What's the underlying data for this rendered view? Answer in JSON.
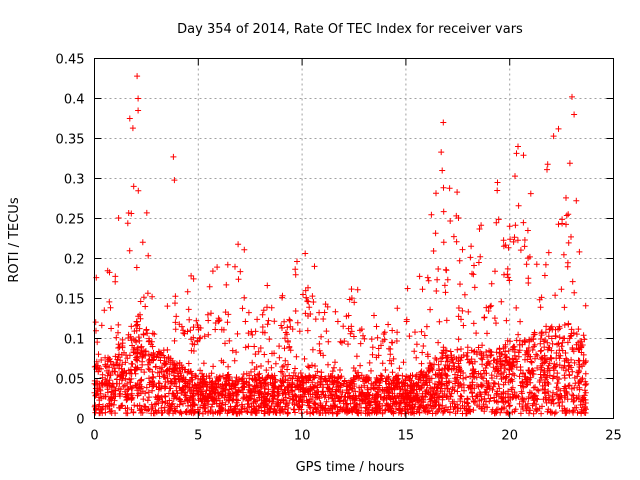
{
  "chart_data": {
    "type": "scatter",
    "title": "Day 354 of 2014, Rate Of TEC Index for receiver vars",
    "xlabel": "GPS time / hours",
    "ylabel": "ROTI / TECUs",
    "xlim": [
      0,
      25
    ],
    "ylim": [
      0,
      0.45
    ],
    "xticks": [
      "0",
      "5",
      "10",
      "15",
      "20",
      "25"
    ],
    "yticks": [
      "0",
      "0.05",
      "0.1",
      "0.15",
      "0.2",
      "0.25",
      "0.3",
      "0.35",
      "0.4",
      "0.45"
    ],
    "grid": true,
    "marker": "+",
    "color": "#ff0000",
    "time_range_hours": [
      0,
      23.7
    ],
    "activity_profile": [
      {
        "t": 0.0,
        "base": 0.04,
        "peak": 0.18
      },
      {
        "t": 1.0,
        "base": 0.05,
        "peak": 0.22
      },
      {
        "t": 2.0,
        "base": 0.08,
        "peak": 0.43
      },
      {
        "t": 3.0,
        "base": 0.05,
        "peak": 0.2
      },
      {
        "t": 4.0,
        "base": 0.04,
        "peak": 0.2
      },
      {
        "t": 5.0,
        "base": 0.03,
        "peak": 0.17
      },
      {
        "t": 7.0,
        "base": 0.03,
        "peak": 0.22
      },
      {
        "t": 9.0,
        "base": 0.03,
        "peak": 0.16
      },
      {
        "t": 10.0,
        "base": 0.03,
        "peak": 0.21
      },
      {
        "t": 12.0,
        "base": 0.03,
        "peak": 0.18
      },
      {
        "t": 14.0,
        "base": 0.03,
        "peak": 0.15
      },
      {
        "t": 15.5,
        "base": 0.03,
        "peak": 0.18
      },
      {
        "t": 16.7,
        "base": 0.05,
        "peak": 0.37
      },
      {
        "t": 18.0,
        "base": 0.05,
        "peak": 0.3
      },
      {
        "t": 19.0,
        "base": 0.05,
        "peak": 0.28
      },
      {
        "t": 20.5,
        "base": 0.06,
        "peak": 0.34
      },
      {
        "t": 22.0,
        "base": 0.07,
        "peak": 0.36
      },
      {
        "t": 23.0,
        "base": 0.07,
        "peak": 0.4
      },
      {
        "t": 23.7,
        "base": 0.05,
        "peak": 0.22
      }
    ],
    "highlighted_points": [
      {
        "x": 2.05,
        "y": 0.428
      },
      {
        "x": 2.1,
        "y": 0.4
      },
      {
        "x": 2.1,
        "y": 0.385
      },
      {
        "x": 1.7,
        "y": 0.375
      },
      {
        "x": 1.85,
        "y": 0.363
      },
      {
        "x": 3.8,
        "y": 0.327
      },
      {
        "x": 3.85,
        "y": 0.298
      },
      {
        "x": 16.8,
        "y": 0.37
      },
      {
        "x": 16.7,
        "y": 0.333
      },
      {
        "x": 16.75,
        "y": 0.31
      },
      {
        "x": 23.0,
        "y": 0.402
      },
      {
        "x": 23.1,
        "y": 0.38
      },
      {
        "x": 22.35,
        "y": 0.362
      },
      {
        "x": 20.4,
        "y": 0.34
      },
      {
        "x": 19.4,
        "y": 0.285
      }
    ]
  }
}
